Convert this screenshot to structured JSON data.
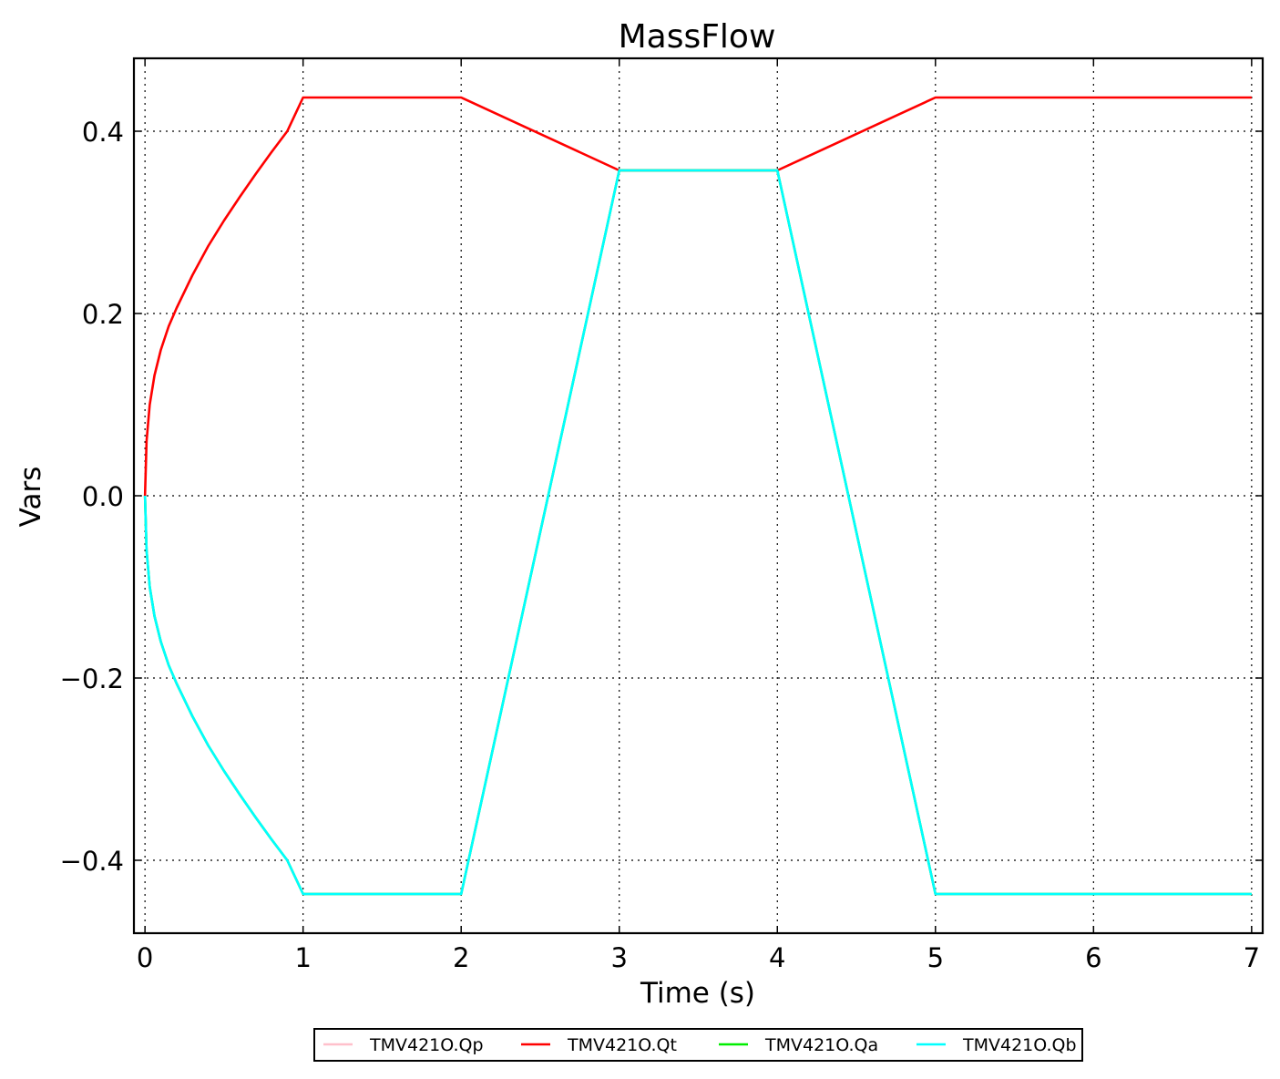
{
  "chart_data": {
    "type": "line",
    "title": "MassFlow",
    "xlabel": "Time (s)",
    "ylabel": "Vars",
    "xlim": [
      -0.07,
      7.07
    ],
    "ylim": [
      -0.48,
      0.48
    ],
    "x_ticks": [
      0,
      1,
      2,
      3,
      4,
      5,
      6,
      7
    ],
    "x_tick_labels": [
      "0",
      "1",
      "2",
      "3",
      "4",
      "5",
      "6",
      "7"
    ],
    "y_ticks": [
      -0.4,
      -0.2,
      0.0,
      0.2,
      0.4
    ],
    "y_tick_labels": [
      "−0.4",
      "−0.2",
      "0.0",
      "0.2",
      "0.4"
    ],
    "grid": true,
    "legend_position": "bottom-center, outside plot",
    "series": [
      {
        "name": "TMV421O.Qp",
        "color": "#ffc0cb",
        "x": [
          0,
          0.01,
          0.03,
          0.06,
          0.1,
          0.15,
          0.2,
          0.3,
          0.4,
          0.5,
          0.6,
          0.7,
          0.8,
          0.9,
          1.0,
          2.0,
          3.0,
          4.0,
          5.0,
          7.0
        ],
        "y": [
          0,
          -0.06,
          -0.1,
          -0.132,
          -0.16,
          -0.186,
          -0.206,
          -0.242,
          -0.274,
          -0.302,
          -0.328,
          -0.353,
          -0.377,
          -0.4,
          -0.437,
          -0.437,
          0.357,
          0.357,
          -0.437,
          -0.437
        ]
      },
      {
        "name": "TMV421O.Qt",
        "color": "#ff0000",
        "x": [
          0,
          0.01,
          0.03,
          0.06,
          0.1,
          0.15,
          0.2,
          0.3,
          0.4,
          0.5,
          0.6,
          0.7,
          0.8,
          0.9,
          1.0,
          2.0,
          3.0,
          4.0,
          5.0,
          7.0
        ],
        "y": [
          0,
          0.06,
          0.1,
          0.132,
          0.16,
          0.186,
          0.206,
          0.242,
          0.274,
          0.302,
          0.328,
          0.353,
          0.377,
          0.4,
          0.437,
          0.437,
          0.357,
          0.357,
          0.437,
          0.437
        ]
      },
      {
        "name": "TMV421O.Qa",
        "color": "#00ee00",
        "x": [
          0,
          0.01,
          0.03,
          0.06,
          0.1,
          0.15,
          0.2,
          0.3,
          0.4,
          0.5,
          0.6,
          0.7,
          0.8,
          0.9,
          1.0,
          2.0,
          3.0,
          4.0,
          5.0,
          7.0
        ],
        "y": [
          0,
          -0.06,
          -0.1,
          -0.132,
          -0.16,
          -0.186,
          -0.206,
          -0.242,
          -0.274,
          -0.302,
          -0.328,
          -0.353,
          -0.377,
          -0.4,
          -0.437,
          -0.437,
          0.357,
          0.357,
          -0.437,
          -0.437
        ]
      },
      {
        "name": "TMV421O.Qb",
        "color": "#00ffff",
        "x": [
          0,
          0.01,
          0.03,
          0.06,
          0.1,
          0.15,
          0.2,
          0.3,
          0.4,
          0.5,
          0.6,
          0.7,
          0.8,
          0.9,
          1.0,
          2.0,
          3.0,
          4.0,
          5.0,
          7.0
        ],
        "y": [
          0,
          -0.06,
          -0.1,
          -0.132,
          -0.16,
          -0.186,
          -0.206,
          -0.242,
          -0.274,
          -0.302,
          -0.328,
          -0.353,
          -0.377,
          -0.4,
          -0.437,
          -0.437,
          0.357,
          0.357,
          -0.437,
          -0.437
        ]
      }
    ]
  }
}
